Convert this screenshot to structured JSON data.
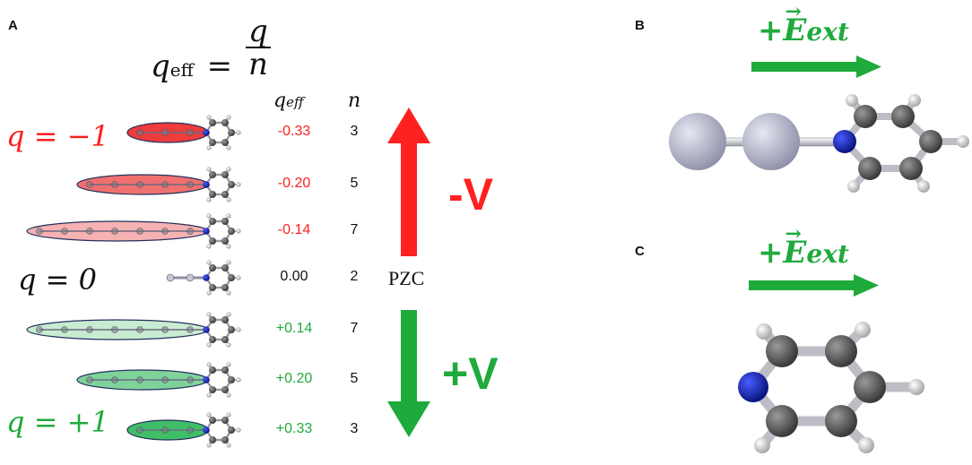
{
  "panel_a": {
    "letter": "A",
    "formula": {
      "lhs_base": "q",
      "lhs_sub": "eff",
      "equals": "=",
      "numerator": "q",
      "denominator": "n"
    },
    "col_qeff_header": "q",
    "col_qeff_sub": "eff",
    "col_n_header": "n",
    "rows": [
      {
        "qeff": "-0.33",
        "n": "3",
        "color": "#ff2020"
      },
      {
        "qeff": "-0.20",
        "n": "5",
        "color": "#ff2020"
      },
      {
        "qeff": "-0.14",
        "n": "7",
        "color": "#ff2020"
      },
      {
        "qeff": "0.00",
        "n": "2",
        "color": "#111111"
      },
      {
        "qeff": "+0.14",
        "n": "7",
        "color": "#1faa3c"
      },
      {
        "qeff": "+0.20",
        "n": "5",
        "color": "#1faa3c"
      },
      {
        "qeff": "+0.33",
        "n": "3",
        "color": "#1faa3c"
      }
    ],
    "charge_labels": {
      "neg": "q = −1",
      "zero": "q = 0",
      "pos": "q = +1"
    },
    "neg_voltage": "-V",
    "pos_voltage": "+V",
    "pzc": "PZC",
    "colors": {
      "red": "#ff2020",
      "green": "#1faa3c"
    }
  },
  "panel_b": {
    "letter": "B",
    "field_sign": "+",
    "field_symbol": "E",
    "field_sub": "ext"
  },
  "panel_c": {
    "letter": "C",
    "field_sign": "+",
    "field_symbol": "E",
    "field_sub": "ext"
  }
}
